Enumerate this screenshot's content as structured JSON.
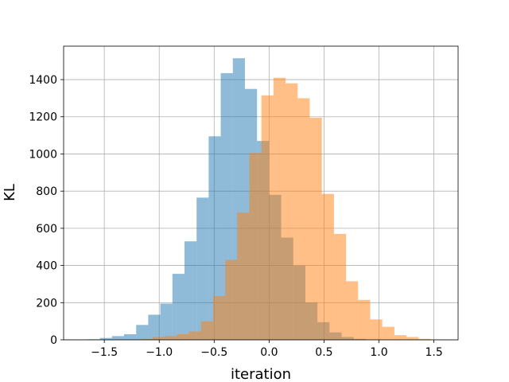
{
  "chart_data": {
    "type": "histogram",
    "title": "",
    "xlabel": "iteration",
    "ylabel": "KL",
    "xlim": [
      -1.87,
      1.72
    ],
    "ylim": [
      0,
      1580
    ],
    "xticks": [
      -1.5,
      -1.0,
      -0.5,
      0.0,
      0.5,
      1.0,
      1.5
    ],
    "xtick_labels": [
      "−1.5",
      "−1.0",
      "−0.5",
      "0.0",
      "0.5",
      "1.0",
      "1.5"
    ],
    "yticks": [
      0,
      200,
      400,
      600,
      800,
      1000,
      1200,
      1400
    ],
    "ytick_labels": [
      "0",
      "200",
      "400",
      "600",
      "800",
      "1000",
      "1200",
      "1400"
    ],
    "grid": true,
    "legend": "none",
    "series": [
      {
        "color": "#1f77b4",
        "alpha": 0.5,
        "bins": [
          {
            "x0": -1.87,
            "x1": -1.76,
            "count": 2
          },
          {
            "x0": -1.76,
            "x1": -1.65,
            "count": 1
          },
          {
            "x0": -1.65,
            "x1": -1.54,
            "count": 3
          },
          {
            "x0": -1.54,
            "x1": -1.43,
            "count": 10
          },
          {
            "x0": -1.43,
            "x1": -1.32,
            "count": 20
          },
          {
            "x0": -1.32,
            "x1": -1.21,
            "count": 30
          },
          {
            "x0": -1.21,
            "x1": -1.1,
            "count": 80
          },
          {
            "x0": -1.1,
            "x1": -0.99,
            "count": 135
          },
          {
            "x0": -0.99,
            "x1": -0.88,
            "count": 195
          },
          {
            "x0": -0.88,
            "x1": -0.77,
            "count": 355
          },
          {
            "x0": -0.77,
            "x1": -0.66,
            "count": 530
          },
          {
            "x0": -0.66,
            "x1": -0.55,
            "count": 765
          },
          {
            "x0": -0.55,
            "x1": -0.44,
            "count": 1095
          },
          {
            "x0": -0.44,
            "x1": -0.33,
            "count": 1435
          },
          {
            "x0": -0.33,
            "x1": -0.22,
            "count": 1515
          },
          {
            "x0": -0.22,
            "x1": -0.11,
            "count": 1350
          },
          {
            "x0": -0.11,
            "x1": 0.0,
            "count": 1070
          },
          {
            "x0": 0.0,
            "x1": 0.11,
            "count": 780
          },
          {
            "x0": 0.11,
            "x1": 0.22,
            "count": 550
          },
          {
            "x0": 0.22,
            "x1": 0.33,
            "count": 400
          },
          {
            "x0": 0.33,
            "x1": 0.44,
            "count": 200
          },
          {
            "x0": 0.44,
            "x1": 0.55,
            "count": 95
          },
          {
            "x0": 0.55,
            "x1": 0.66,
            "count": 40
          },
          {
            "x0": 0.66,
            "x1": 0.77,
            "count": 15
          },
          {
            "x0": 0.77,
            "x1": 0.88,
            "count": 5
          }
        ]
      },
      {
        "color": "#ff7f0e",
        "alpha": 0.5,
        "bins": [
          {
            "x0": -1.16,
            "x1": -1.06,
            "count": 5
          },
          {
            "x0": -1.06,
            "x1": -0.95,
            "count": 15
          },
          {
            "x0": -0.95,
            "x1": -0.84,
            "count": 20
          },
          {
            "x0": -0.84,
            "x1": -0.73,
            "count": 30
          },
          {
            "x0": -0.73,
            "x1": -0.62,
            "count": 45
          },
          {
            "x0": -0.62,
            "x1": -0.51,
            "count": 100
          },
          {
            "x0": -0.51,
            "x1": -0.4,
            "count": 235
          },
          {
            "x0": -0.4,
            "x1": -0.29,
            "count": 430
          },
          {
            "x0": -0.29,
            "x1": -0.18,
            "count": 685
          },
          {
            "x0": -0.18,
            "x1": -0.07,
            "count": 1005
          },
          {
            "x0": -0.07,
            "x1": 0.04,
            "count": 1315
          },
          {
            "x0": 0.04,
            "x1": 0.15,
            "count": 1410
          },
          {
            "x0": 0.15,
            "x1": 0.26,
            "count": 1380
          },
          {
            "x0": 0.26,
            "x1": 0.37,
            "count": 1300
          },
          {
            "x0": 0.37,
            "x1": 0.48,
            "count": 1195
          },
          {
            "x0": 0.48,
            "x1": 0.59,
            "count": 785
          },
          {
            "x0": 0.59,
            "x1": 0.7,
            "count": 570
          },
          {
            "x0": 0.7,
            "x1": 0.81,
            "count": 315
          },
          {
            "x0": 0.81,
            "x1": 0.92,
            "count": 215
          },
          {
            "x0": 0.92,
            "x1": 1.03,
            "count": 110
          },
          {
            "x0": 1.03,
            "x1": 1.14,
            "count": 70
          },
          {
            "x0": 1.14,
            "x1": 1.25,
            "count": 25
          },
          {
            "x0": 1.25,
            "x1": 1.36,
            "count": 15
          },
          {
            "x0": 1.36,
            "x1": 1.47,
            "count": 5
          },
          {
            "x0": 1.47,
            "x1": 1.58,
            "count": 2
          }
        ]
      }
    ]
  }
}
